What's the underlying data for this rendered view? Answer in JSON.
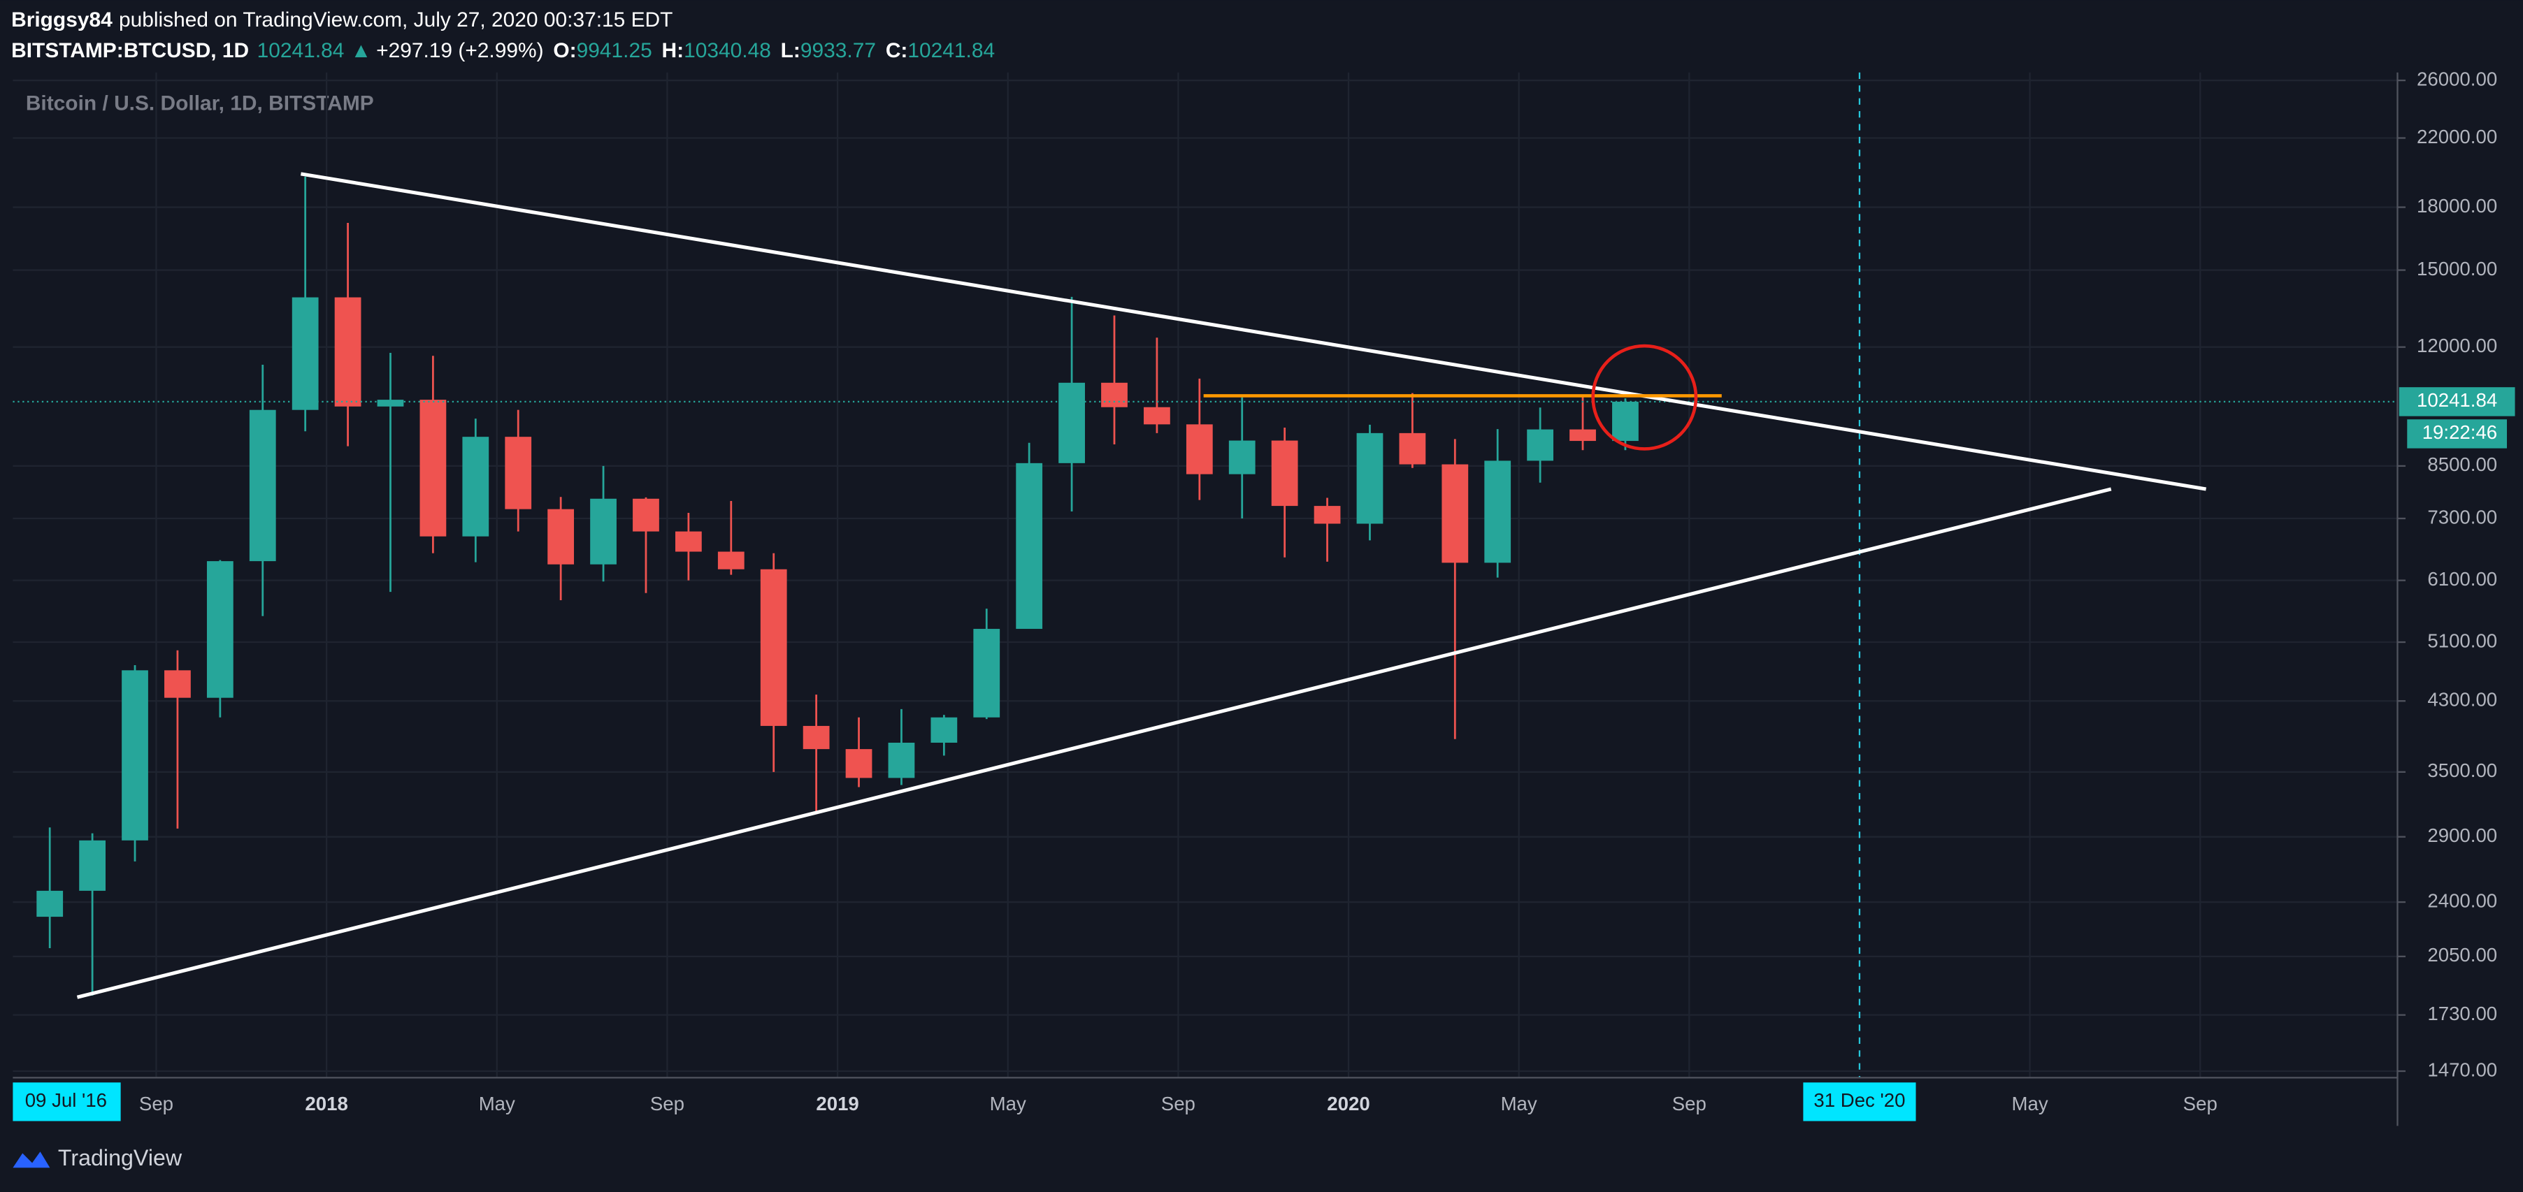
{
  "header": {
    "author": "Briggsy84",
    "published": "published on TradingView.com, July 27, 2020 00:37:15 EDT",
    "symbol": "BITSTAMP:BTCUSD, 1D",
    "last": "10241.84",
    "arrow": "▲",
    "change": "+297.19 (+2.99%)",
    "ohlc": [
      {
        "label": "O:",
        "value": "9941.25"
      },
      {
        "label": "H:",
        "value": "10340.48"
      },
      {
        "label": "L:",
        "value": "9933.77"
      },
      {
        "label": "C:",
        "value": "10241.84"
      }
    ]
  },
  "chart_data": {
    "type": "candlestick",
    "title": "Bitcoin / U.S. Dollar, 1D, BITSTAMP",
    "x": [
      "2017-06",
      "2017-07",
      "2017-08",
      "2017-09",
      "2017-10",
      "2017-11",
      "2017-12",
      "2018-01",
      "2018-02",
      "2018-03",
      "2018-04",
      "2018-05",
      "2018-06",
      "2018-07",
      "2018-08",
      "2018-09",
      "2018-10",
      "2018-11",
      "2018-12",
      "2019-01",
      "2019-02",
      "2019-03",
      "2019-04",
      "2019-05",
      "2019-06",
      "2019-07",
      "2019-08",
      "2019-09",
      "2019-10",
      "2019-11",
      "2019-12",
      "2020-01",
      "2020-02",
      "2020-03",
      "2020-04",
      "2020-05",
      "2020-06",
      "2020-07"
    ],
    "open": [
      2300,
      2480,
      2870,
      4700,
      4340,
      6450,
      10000,
      13860,
      10100,
      10300,
      6930,
      9250,
      7500,
      6390,
      7730,
      7030,
      6630,
      6300,
      4000,
      3740,
      3440,
      3810,
      4100,
      5300,
      8570,
      10820,
      10080,
      9590,
      8300,
      9150,
      7570,
      7190,
      9350,
      8540,
      6420,
      8630,
      9450,
      9140
    ],
    "high": [
      2980,
      2930,
      4770,
      4980,
      6470,
      11400,
      19666,
      17200,
      11800,
      11700,
      9750,
      10000,
      7770,
      8500,
      7760,
      7420,
      7680,
      6600,
      4380,
      4100,
      4200,
      4130,
      5620,
      9090,
      13880,
      13150,
      12330,
      10950,
      10370,
      9500,
      7750,
      9580,
      10500,
      9190,
      9460,
      10070,
      10380,
      10340.48
    ],
    "low": [
      2100,
      1830,
      2700,
      2970,
      4100,
      5500,
      9400,
      9000,
      5900,
      6600,
      6430,
      7030,
      5760,
      6080,
      5880,
      6100,
      6200,
      3500,
      3120,
      3350,
      3370,
      3670,
      4080,
      5330,
      7450,
      9050,
      9350,
      7700,
      7300,
      6520,
      6440,
      6850,
      8450,
      3850,
      6150,
      8100,
      8900,
      8900
    ],
    "close": [
      2480,
      2870,
      4700,
      4340,
      6450,
      10000,
      13860,
      10100,
      10300,
      6930,
      9250,
      7500,
      6390,
      7730,
      7030,
      6630,
      6300,
      4000,
      3740,
      3440,
      3810,
      4100,
      5300,
      8570,
      10820,
      10080,
      9590,
      8300,
      9150,
      7570,
      7190,
      9350,
      8540,
      6420,
      8630,
      9450,
      9140,
      10241.84
    ],
    "up_color": "#26a69a",
    "down_color": "#ef5350",
    "log_scale": true,
    "grid": true,
    "ylim": [
      1456,
      26600
    ],
    "yticks": [
      {
        "value": 1470,
        "label": "1470.00"
      },
      {
        "value": 1730,
        "label": "1730.00"
      },
      {
        "value": 2050,
        "label": "2050.00"
      },
      {
        "value": 2400,
        "label": "2400.00"
      },
      {
        "value": 2900,
        "label": "2900.00"
      },
      {
        "value": 3500,
        "label": "3500.00"
      },
      {
        "value": 4300,
        "label": "4300.00"
      },
      {
        "value": 5100,
        "label": "5100.00"
      },
      {
        "value": 6100,
        "label": "6100.00"
      },
      {
        "value": 7300,
        "label": "7300.00"
      },
      {
        "value": 8500,
        "label": "8500.00"
      },
      {
        "value": 12000,
        "label": "12000.00"
      },
      {
        "value": 15000,
        "label": "15000.00"
      },
      {
        "value": 18000,
        "label": "18000.00"
      },
      {
        "value": 22000,
        "label": "22000.00"
      },
      {
        "value": 26000,
        "label": "26000.00"
      }
    ],
    "xlim": [
      "2017-05-20",
      "2022-01-20"
    ],
    "xticks": [
      {
        "value": "2017-09",
        "label": "Sep"
      },
      {
        "value": "2018-01",
        "label": "2018"
      },
      {
        "value": "2018-05",
        "label": "May"
      },
      {
        "value": "2018-09",
        "label": "Sep"
      },
      {
        "value": "2019-01",
        "label": "2019"
      },
      {
        "value": "2019-05",
        "label": "May"
      },
      {
        "value": "2019-09",
        "label": "Sep"
      },
      {
        "value": "2020-01",
        "label": "2020"
      },
      {
        "value": "2020-05",
        "label": "May"
      },
      {
        "value": "2020-09",
        "label": "Sep"
      },
      {
        "value": "2021-05",
        "label": "May"
      },
      {
        "value": "2021-09",
        "label": "Sep"
      }
    ],
    "range_start_label": "09 Jul '16",
    "last_price": 10241.84,
    "countdown": "19:22:46",
    "marker": {
      "x": "2020-12-31",
      "label": "31 Dec '20"
    }
  },
  "footer": {
    "brand": "TradingView"
  }
}
